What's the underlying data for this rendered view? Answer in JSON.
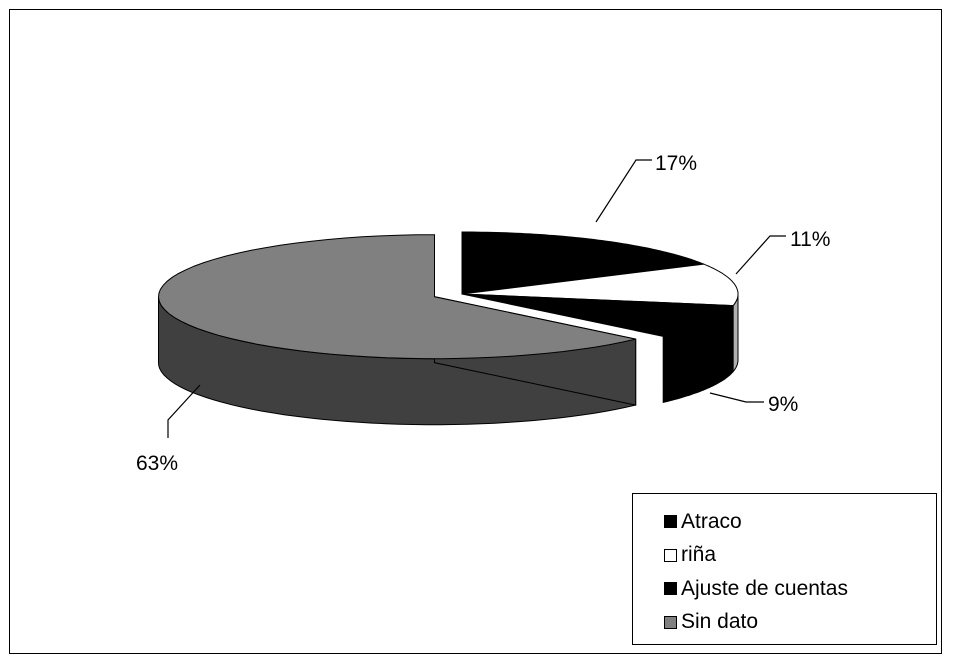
{
  "chart_data": {
    "type": "pie",
    "three_d": true,
    "categories": [
      "Atraco",
      "riña",
      "Ajuste de cuentas",
      "Sin dato"
    ],
    "values": [
      17,
      11,
      9,
      63
    ],
    "data_labels": [
      "17%",
      "11%",
      "9%",
      "63%"
    ],
    "colors": [
      "#000000",
      "#ffffff",
      "#000000",
      "#808080"
    ],
    "side_colors": [
      "#000000",
      "#b0b0b0",
      "#000000",
      "#404040"
    ],
    "legend_position": "bottom-right",
    "title": "",
    "exploded": "Sin dato"
  }
}
